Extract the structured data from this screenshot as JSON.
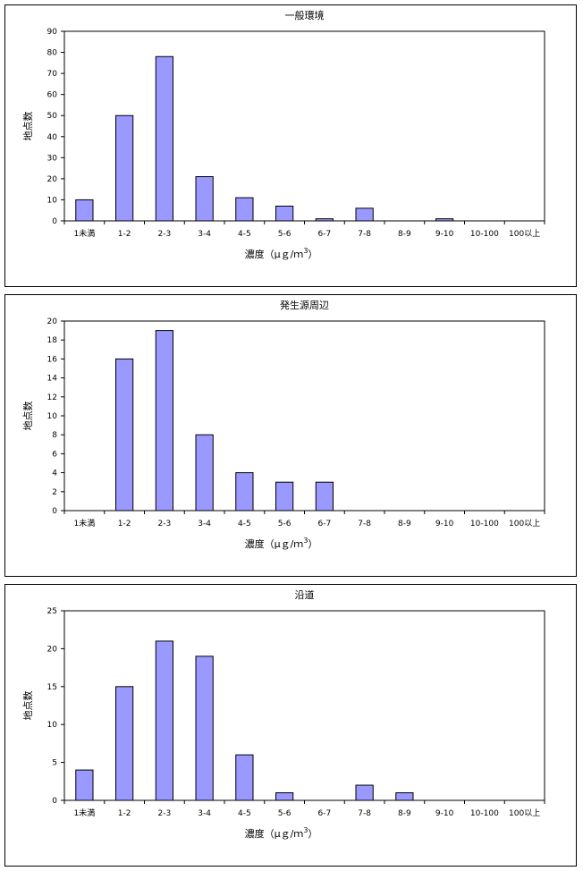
{
  "chart_data": [
    {
      "type": "bar",
      "title": "一般環境",
      "categories": [
        "1未満",
        "1-2",
        "2-3",
        "3-4",
        "4-5",
        "5-6",
        "6-7",
        "7-8",
        "8-9",
        "9-10",
        "10-100",
        "100以上"
      ],
      "values": [
        10,
        50,
        78,
        21,
        11,
        7,
        1,
        6,
        0,
        1,
        0,
        0
      ],
      "ylabel": "地点数",
      "xlabel_main": "濃度（μｇ/ｍ",
      "xlabel_sup": "3",
      "xlabel_end": "）",
      "ylim": [
        0,
        90
      ],
      "ystep": 10,
      "y_ticks": [
        "0",
        "10",
        "20",
        "30",
        "40",
        "50",
        "60",
        "70",
        "80",
        "90"
      ]
    },
    {
      "type": "bar",
      "title": "発生源周辺",
      "categories": [
        "1未満",
        "1-2",
        "2-3",
        "3-4",
        "4-5",
        "5-6",
        "6-7",
        "7-8",
        "8-9",
        "9-10",
        "10-100",
        "100以上"
      ],
      "values": [
        0,
        16,
        19,
        8,
        4,
        3,
        3,
        0,
        0,
        0,
        0,
        0
      ],
      "ylabel": "地点数",
      "xlabel_main": "濃度（μｇ/ｍ",
      "xlabel_sup": "3",
      "xlabel_end": "）",
      "ylim": [
        0,
        20
      ],
      "ystep": 2,
      "y_ticks": [
        "0",
        "2",
        "4",
        "6",
        "8",
        "10",
        "12",
        "14",
        "16",
        "18",
        "20"
      ]
    },
    {
      "type": "bar",
      "title": "沿道",
      "categories": [
        "1未満",
        "1-2",
        "2-3",
        "3-4",
        "4-5",
        "5-6",
        "6-7",
        "7-8",
        "8-9",
        "9-10",
        "10-100",
        "100以上"
      ],
      "values": [
        4,
        15,
        21,
        19,
        6,
        1,
        0,
        2,
        1,
        0,
        0,
        0
      ],
      "ylabel": "地点数",
      "xlabel_main": "濃度（μｇ/ｍ",
      "xlabel_sup": "3",
      "xlabel_end": "）",
      "ylim": [
        0,
        25
      ],
      "ystep": 5,
      "y_ticks": [
        "0",
        "5",
        "10",
        "15",
        "20",
        "25"
      ]
    }
  ]
}
